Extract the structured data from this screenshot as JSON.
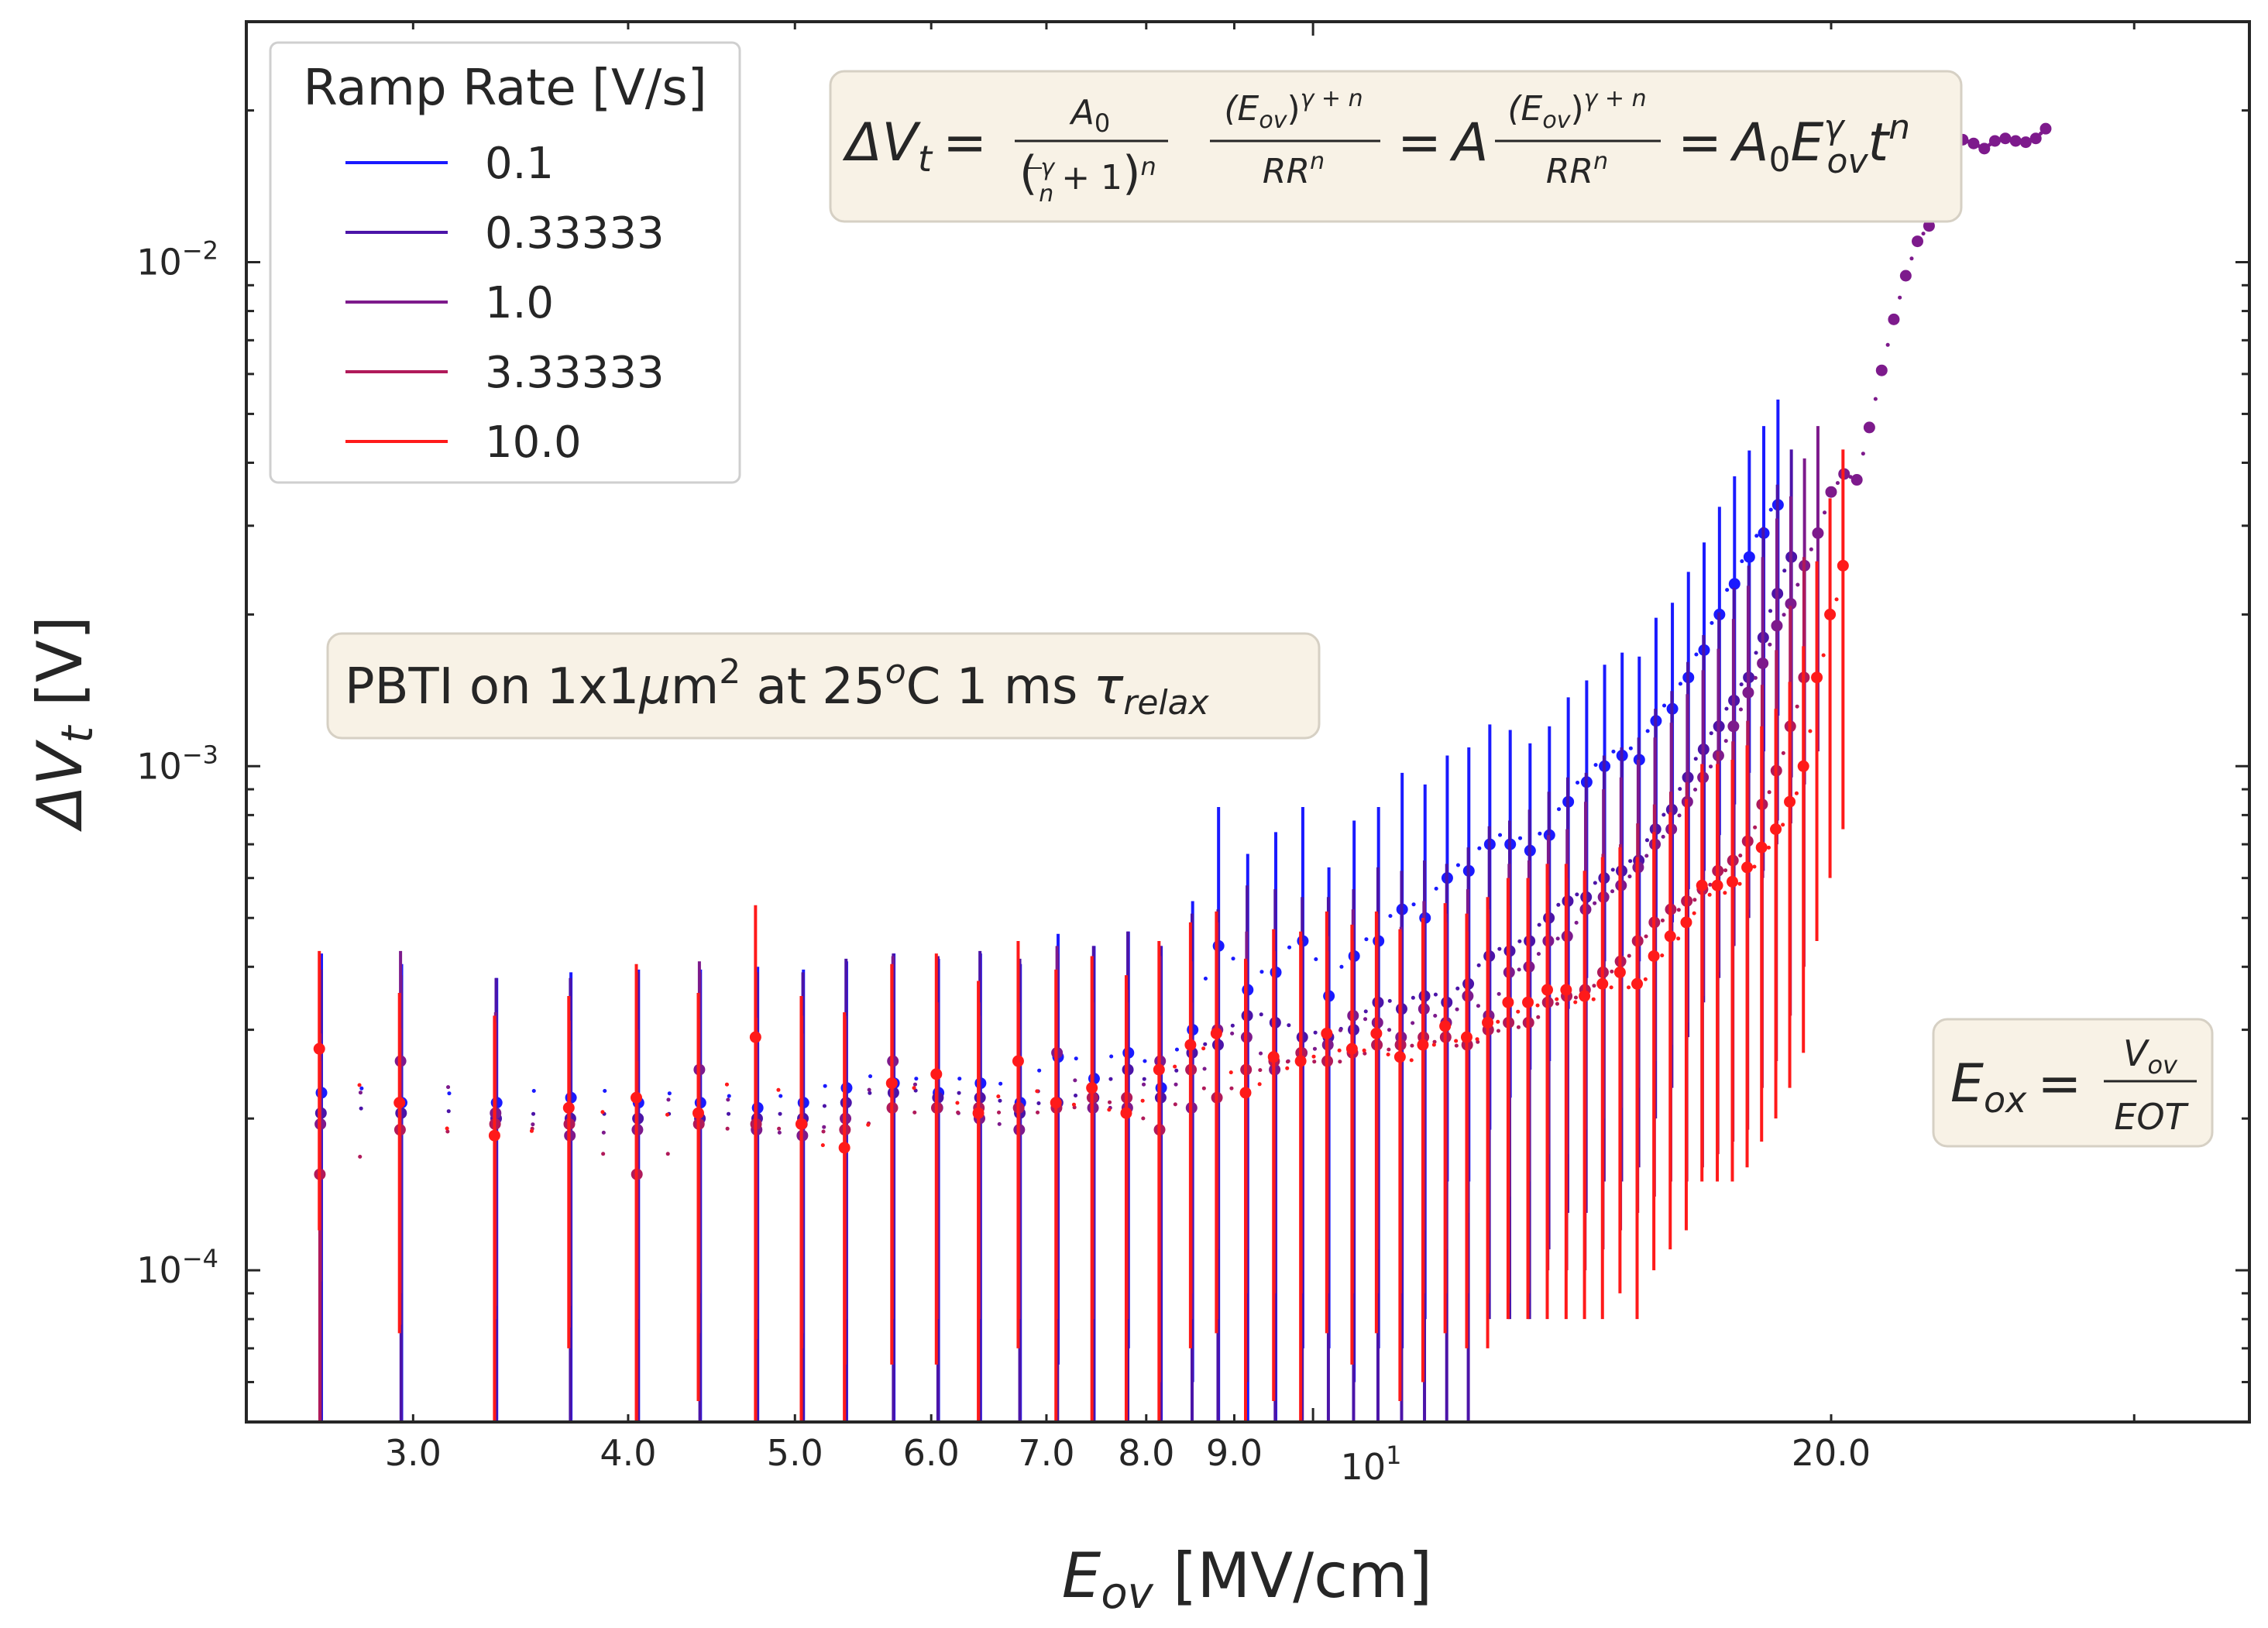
{
  "chart_data": {
    "type": "scatter",
    "xscale": "log",
    "yscale": "log",
    "xlim": [
      2.4,
      35
    ],
    "ylim": [
      5e-05,
      0.03
    ],
    "xlabel_var": "E",
    "xlabel_sub": "ov",
    "xlabel_unit": " [MV/cm]",
    "ylabel_var": "ΔV",
    "ylabel_sub": "t",
    "ylabel_unit": " [V]",
    "xticks": [
      {
        "value": 3.0,
        "label": "3.0"
      },
      {
        "value": 4.0,
        "label": "4.0"
      },
      {
        "value": 5.0,
        "label": "5.0"
      },
      {
        "value": 6.0,
        "label": "6.0"
      },
      {
        "value": 7.0,
        "label": "7.0"
      },
      {
        "value": 8.0,
        "label": "8.0"
      },
      {
        "value": 9.0,
        "label": "9.0"
      },
      {
        "value": 20.0,
        "label": "20.0"
      }
    ],
    "x_major_tick": {
      "value": 10,
      "base": "10",
      "exp": "1"
    },
    "yticks": [
      {
        "value": 0.0001,
        "base": "10",
        "exp": "−4"
      },
      {
        "value": 0.001,
        "base": "10",
        "exp": "−3"
      },
      {
        "value": 0.01,
        "base": "10",
        "exp": "−2"
      }
    ],
    "legend": {
      "title": "Ramp Rate [V/s]",
      "location": "upper-left",
      "entries": [
        {
          "label": "0.1",
          "color": "#1a1aff"
        },
        {
          "label": "0.33333",
          "color": "#4b14a8"
        },
        {
          "label": "1.0",
          "color": "#7d1a8c"
        },
        {
          "label": "3.33333",
          "color": "#b01a5a"
        },
        {
          "label": "10.0",
          "color": "#ff1a1a"
        }
      ]
    },
    "series": [
      {
        "name": "0.1",
        "color": "#1a1aff",
        "offset": 0.014,
        "x": [
          2.65,
          2.95,
          3.35,
          3.7,
          4.05,
          4.4,
          4.75,
          5.05,
          5.35,
          5.7,
          6.05,
          6.4,
          6.75,
          7.1,
          7.45,
          7.8,
          8.15,
          8.5,
          8.8,
          9.15,
          9.5,
          9.85,
          10.2,
          10.55,
          10.9,
          11.25,
          11.6,
          11.95,
          12.3,
          12.65,
          13.0,
          13.35,
          13.7,
          14.05,
          14.4,
          14.75,
          15.1,
          15.45,
          15.8,
          16.15,
          16.5,
          16.85,
          17.2,
          17.55,
          17.9,
          18.25,
          18.6
        ],
        "y": [
          0.000225,
          0.000215,
          0.000215,
          0.00022,
          0.000215,
          0.000215,
          0.00021,
          0.000215,
          0.00023,
          0.000235,
          0.000225,
          0.000235,
          0.000215,
          0.000265,
          0.00024,
          0.00027,
          0.00023,
          0.0003,
          0.00044,
          0.00036,
          0.00039,
          0.00045,
          0.00035,
          0.00042,
          0.00045,
          0.00052,
          0.0005,
          0.0006,
          0.00062,
          0.0007,
          0.0007,
          0.00068,
          0.00073,
          0.00085,
          0.00093,
          0.001,
          0.00105,
          0.00103,
          0.00123,
          0.0013,
          0.0015,
          0.0017,
          0.002,
          0.0023,
          0.0026,
          0.0029,
          0.0033
        ],
        "err": [
          0.0002,
          0.00019,
          0.000165,
          0.00017,
          0.00018,
          0.00018,
          0.00019,
          0.00018,
          0.00018,
          0.00019,
          0.00019,
          0.00019,
          0.00019,
          0.0002,
          0.0002,
          0.0002,
          0.00021,
          0.00024,
          0.00039,
          0.00031,
          0.00035,
          0.00038,
          0.00028,
          0.00036,
          0.00038,
          0.00045,
          0.00042,
          0.00045,
          0.00047,
          0.00051,
          0.00048,
          0.00043,
          0.00047,
          0.00052,
          0.00055,
          0.00059,
          0.00063,
          0.00062,
          0.00074,
          0.00081,
          0.00093,
          0.00108,
          0.00127,
          0.00146,
          0.00163,
          0.00183,
          0.00204
        ]
      },
      {
        "name": "0.33333",
        "color": "#4b14a8",
        "offset": 0.007,
        "x": [
          2.65,
          2.95,
          3.35,
          3.7,
          4.05,
          4.4,
          4.75,
          5.05,
          5.35,
          5.7,
          6.05,
          6.4,
          6.75,
          7.1,
          7.45,
          7.8,
          8.15,
          8.5,
          8.8,
          9.15,
          9.5,
          9.85,
          10.2,
          10.55,
          10.9,
          11.25,
          11.6,
          11.95,
          12.3,
          12.65,
          13.0,
          13.35,
          13.7,
          14.05,
          14.4,
          14.75,
          15.1,
          15.45,
          15.8,
          16.15,
          16.5,
          16.85,
          17.2,
          17.55,
          17.9,
          18.25,
          18.6,
          18.95
        ],
        "y": [
          0.000205,
          0.000205,
          0.0002,
          0.0002,
          0.0002,
          0.0002,
          0.0002,
          0.0002,
          0.000215,
          0.000225,
          0.00022,
          0.00022,
          0.000205,
          0.000215,
          0.00022,
          0.00025,
          0.00022,
          0.00027,
          0.00028,
          0.00032,
          0.00031,
          0.00029,
          0.00029,
          0.0003,
          0.00034,
          0.00033,
          0.00035,
          0.00034,
          0.00037,
          0.00042,
          0.00043,
          0.00045,
          0.0005,
          0.00054,
          0.00055,
          0.0006,
          0.00062,
          0.00065,
          0.00075,
          0.00082,
          0.00095,
          0.00108,
          0.0012,
          0.00135,
          0.0015,
          0.0018,
          0.0022,
          0.0026
        ],
        "err": [
          0.00019,
          0.00018,
          0.00018,
          0.00018,
          0.00019,
          0.00019,
          0.00019,
          0.00019,
          0.0002,
          0.0002,
          0.0002,
          0.00021,
          0.00021,
          0.00021,
          0.00022,
          0.00022,
          0.00022,
          0.00024,
          0.00024,
          0.00026,
          0.00026,
          0.00026,
          0.00026,
          0.00027,
          0.00029,
          0.00029,
          0.0003,
          0.0003,
          0.00032,
          0.00034,
          0.00035,
          0.00037,
          0.00039,
          0.00041,
          0.00042,
          0.00045,
          0.00047,
          0.00049,
          0.00055,
          0.00059,
          0.00066,
          0.00074,
          0.00082,
          0.00091,
          0.001,
          0.00118,
          0.00142,
          0.00165
        ]
      },
      {
        "name": "1.0",
        "color": "#7d1a8c",
        "offset": 0.0,
        "x": [
          2.65,
          2.95,
          3.35,
          3.7,
          4.05,
          4.4,
          4.75,
          5.05,
          5.35,
          5.7,
          6.05,
          6.4,
          6.75,
          7.1,
          7.45,
          7.8,
          8.15,
          8.5,
          8.8,
          9.15,
          9.5,
          9.85,
          10.2,
          10.55,
          10.9,
          11.25,
          11.6,
          11.95,
          12.3,
          12.65,
          13.0,
          13.35,
          13.7,
          14.05,
          14.4,
          14.75,
          15.1,
          15.45,
          15.8,
          16.15,
          16.5,
          16.85,
          17.2,
          17.55,
          17.9,
          18.25,
          18.6,
          18.95,
          19.3,
          19.65,
          20.0,
          20.35,
          20.7,
          21.05,
          21.4,
          21.75,
          22.1,
          22.45,
          22.8,
          23.15,
          23.5,
          23.85,
          24.2,
          24.55,
          24.9,
          25.25,
          25.6,
          25.95,
          26.3,
          26.65
        ],
        "y": [
          0.000195,
          0.00026,
          0.000205,
          0.000185,
          0.00019,
          0.00025,
          0.00019,
          0.000185,
          0.0002,
          0.00026,
          0.00021,
          0.0002,
          0.00019,
          0.00027,
          0.00021,
          0.00021,
          0.00026,
          0.00021,
          0.0003,
          0.00029,
          0.00025,
          0.00027,
          0.00028,
          0.00032,
          0.00031,
          0.00029,
          0.00033,
          0.00031,
          0.00035,
          0.00032,
          0.00039,
          0.0004,
          0.00045,
          0.00046,
          0.00052,
          0.00055,
          0.00058,
          0.00063,
          0.0007,
          0.00075,
          0.00085,
          0.00095,
          0.00105,
          0.0012,
          0.0014,
          0.0016,
          0.0019,
          0.0021,
          0.0025,
          0.0029,
          0.0035,
          0.0038,
          0.0037,
          0.0047,
          0.0061,
          0.0077,
          0.0094,
          0.011,
          0.0118,
          0.0124,
          0.0133,
          0.0175,
          0.0172,
          0.0168,
          0.0174,
          0.0176,
          0.0174,
          0.0173,
          0.0176,
          0.0184
        ],
        "err": [
          0.0001,
          0.00017,
          0.00012,
          0.0001,
          0.00011,
          0.00016,
          0.00011,
          0.00011,
          0.00012,
          0.00016,
          0.00013,
          0.00012,
          0.00011,
          0.00017,
          0.00013,
          0.00013,
          0.00016,
          0.00013,
          0.00019,
          0.00018,
          0.00016,
          0.00017,
          0.00018,
          0.0002,
          0.0002,
          0.00019,
          0.00021,
          0.0002,
          0.00022,
          0.0002,
          0.00025,
          0.00025,
          0.00028,
          0.00029,
          0.00033,
          0.00035,
          0.00037,
          0.0004,
          0.00044,
          0.00047,
          0.00054,
          0.0006,
          0.00066,
          0.00076,
          0.00088,
          0.001,
          0.0012,
          0.00133,
          0.00158,
          0.00183,
          0,
          0,
          0,
          0,
          0,
          0,
          0,
          0,
          0,
          0,
          0,
          0,
          0,
          0,
          0,
          0,
          0,
          0,
          0,
          0
        ]
      },
      {
        "name": "3.33333",
        "color": "#b01a5a",
        "offset": -0.007,
        "x": [
          2.65,
          2.95,
          3.35,
          3.7,
          4.05,
          4.4,
          4.75,
          5.05,
          5.35,
          5.7,
          6.05,
          6.4,
          6.75,
          7.1,
          7.45,
          7.8,
          8.15,
          8.5,
          8.8,
          9.15,
          9.5,
          9.85,
          10.2,
          10.55,
          10.9,
          11.25,
          11.6,
          11.95,
          12.3,
          12.65,
          13.0,
          13.35,
          13.7,
          14.05,
          14.4,
          14.75,
          15.1,
          15.45,
          15.8,
          16.15,
          16.5,
          16.85,
          17.2,
          17.55,
          17.9,
          18.25,
          18.6,
          18.95,
          19.3
        ],
        "y": [
          0.000155,
          0.00019,
          0.000195,
          0.000195,
          0.000155,
          0.000195,
          0.000195,
          0.000195,
          0.00019,
          0.00021,
          0.00021,
          0.00021,
          0.00021,
          0.00021,
          0.00022,
          0.00022,
          0.00019,
          0.00025,
          0.00022,
          0.00025,
          0.00026,
          0.00027,
          0.00026,
          0.00027,
          0.00028,
          0.00028,
          0.00029,
          0.00029,
          0.00028,
          0.0003,
          0.00031,
          0.00031,
          0.00034,
          0.00035,
          0.00036,
          0.00039,
          0.00041,
          0.00045,
          0.00049,
          0.00052,
          0.00054,
          0.00057,
          0.00062,
          0.00065,
          0.00071,
          0.00084,
          0.00098,
          0.0012,
          0.0015
        ],
        "err": [
          0.000105,
          0.000112,
          0.000115,
          0.000118,
          0.000105,
          0.00012,
          0.000122,
          0.000125,
          0.000125,
          0.00013,
          0.00013,
          0.00013,
          0.00013,
          0.00013,
          0.00014,
          0.00014,
          0.00013,
          0.00016,
          0.00014,
          0.00016,
          0.00017,
          0.00018,
          0.00017,
          0.00018,
          0.00019,
          0.00019,
          0.0002,
          0.0002,
          0.00019,
          0.00021,
          0.00022,
          0.00022,
          0.00024,
          0.00025,
          0.00026,
          0.00028,
          0.00029,
          0.00032,
          0.00035,
          0.00037,
          0.00039,
          0.00041,
          0.00045,
          0.00047,
          0.00052,
          0.00061,
          0.00072,
          0.00088,
          0.0011
        ]
      },
      {
        "name": "10.0",
        "color": "#ff1a1a",
        "offset": -0.014,
        "x": [
          2.65,
          2.95,
          3.35,
          3.7,
          4.05,
          4.4,
          4.75,
          5.05,
          5.35,
          5.7,
          6.05,
          6.4,
          6.75,
          7.1,
          7.45,
          7.8,
          8.15,
          8.5,
          8.8,
          9.15,
          9.5,
          9.85,
          10.2,
          10.55,
          10.9,
          11.25,
          11.6,
          11.95,
          12.3,
          12.65,
          13.0,
          13.35,
          13.7,
          14.05,
          14.4,
          14.75,
          15.1,
          15.45,
          15.8,
          16.15,
          16.5,
          16.85,
          17.2,
          17.55,
          17.9,
          18.25,
          18.6,
          18.95,
          19.3,
          19.65,
          20.0,
          20.35
        ],
        "y": [
          0.000275,
          0.000215,
          0.000185,
          0.00021,
          0.00022,
          0.000205,
          0.00029,
          0.000195,
          0.000175,
          0.000235,
          0.000245,
          0.000205,
          0.00026,
          0.000215,
          0.00023,
          0.000205,
          0.00025,
          0.00028,
          0.000295,
          0.000225,
          0.000265,
          0.00026,
          0.000295,
          0.000275,
          0.000295,
          0.000265,
          0.00028,
          0.000305,
          0.00029,
          0.00031,
          0.00034,
          0.00034,
          0.00036,
          0.00036,
          0.00035,
          0.00037,
          0.00039,
          0.00037,
          0.00042,
          0.00046,
          0.00049,
          0.00058,
          0.00058,
          0.00059,
          0.00063,
          0.00069,
          0.00075,
          0.00085,
          0.001,
          0.0015,
          0.002,
          0.0025
        ],
        "err": [
          0.000155,
          0.00014,
          0.000135,
          0.00014,
          0.000185,
          0.00015,
          0.00024,
          0.000155,
          0.00015,
          0.00017,
          0.00018,
          0.00017,
          0.00019,
          0.00018,
          0.00019,
          0.00018,
          0.0002,
          0.00021,
          0.00022,
          0.00019,
          0.00021,
          0.00021,
          0.00022,
          0.00021,
          0.00022,
          0.00021,
          0.00022,
          0.00023,
          0.00022,
          0.00024,
          0.00026,
          0.00026,
          0.00028,
          0.00028,
          0.00027,
          0.00029,
          0.0003,
          0.00029,
          0.00032,
          0.00035,
          0.00037,
          0.00043,
          0.00043,
          0.00044,
          0.00047,
          0.00051,
          0.00055,
          0.00062,
          0.00073,
          0.00105,
          0.0014,
          0.00175
        ]
      }
    ],
    "annotations": {
      "formula": {
        "dv": "ΔV",
        "t": "t",
        "eq": "=",
        "a0": "A",
        "a0sub": "0",
        "gamma": "γ",
        "n": "n",
        "plus1": "+ 1",
        "eov_num": "(E",
        "ov": "ov",
        "close_paren": ")",
        "exp_gn": "γ + n",
        "rr": "RR",
        "A": "A",
        "rhs_e": "E",
        "rhs_t": "t"
      },
      "conditions": {
        "prefix": "PBTI on 1x1",
        "mu": "μ",
        "m": "m",
        "sq": "2",
        "at": " at 25",
        "o": "o",
        "mid": "C 1 ms ",
        "tau": "τ",
        "relax": "relax"
      },
      "eox": {
        "E": "E",
        "ox": "ox",
        "eq": "=",
        "V": "V",
        "ov": "ov",
        "eot": "EOT"
      }
    }
  }
}
